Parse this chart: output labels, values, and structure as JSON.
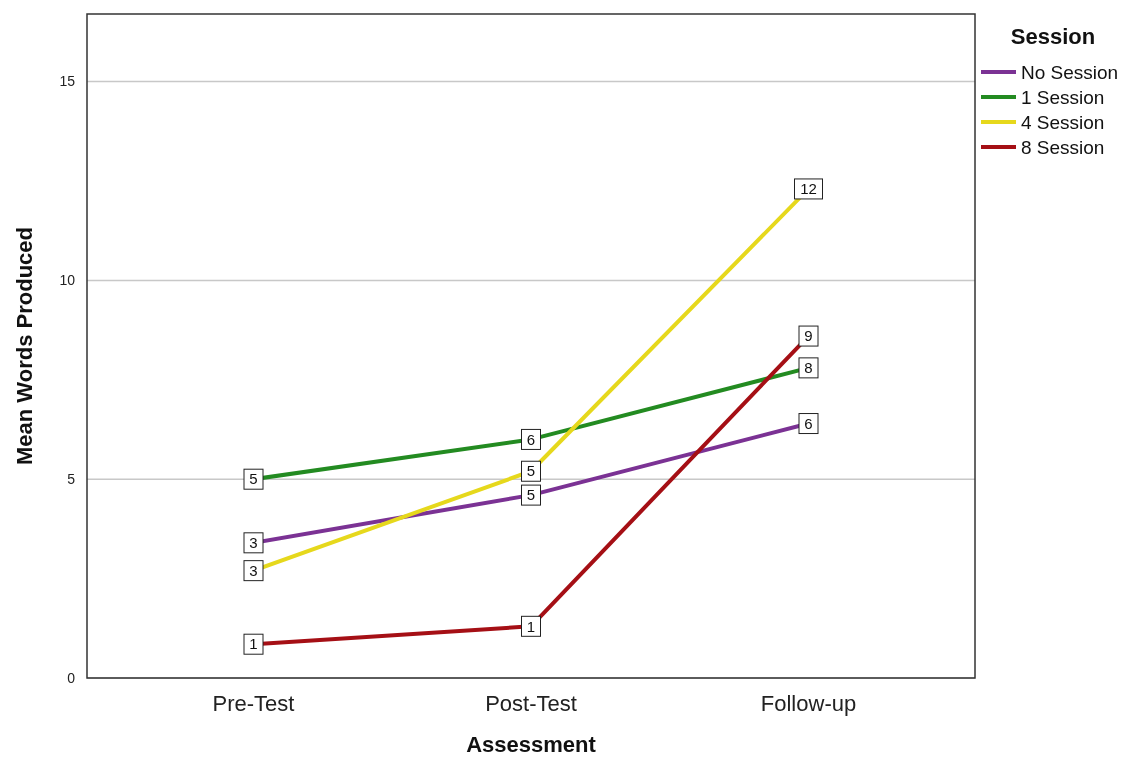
{
  "chart_data": {
    "type": "line",
    "xlabel": "Assessment",
    "ylabel": "Mean Words Produced",
    "legend_title": "Session",
    "categories": [
      "Pre-Test",
      "Post-Test",
      "Follow-up"
    ],
    "series": [
      {
        "name": "No Session",
        "color": "#7b3294",
        "values": [
          3.4,
          4.6,
          6.4
        ],
        "value_labels": [
          "3",
          "5",
          "6"
        ]
      },
      {
        "name": "1 Session",
        "color": "#238b21",
        "values": [
          5.0,
          6.0,
          7.8
        ],
        "value_labels": [
          "5",
          "6",
          "8"
        ]
      },
      {
        "name": "4 Session",
        "color": "#e6d81c",
        "values": [
          2.7,
          5.2,
          12.3
        ],
        "value_labels": [
          "3",
          "5",
          "12"
        ]
      },
      {
        "name": "8 Session",
        "color": "#a50f15",
        "values": [
          0.85,
          1.3,
          8.6
        ],
        "value_labels": [
          "1",
          "1",
          "9"
        ]
      }
    ],
    "ylim": [
      0,
      16.7
    ],
    "yticks": [
      0,
      5,
      10,
      15
    ],
    "grid": "y",
    "legend": "top right",
    "marker": "square",
    "line_style": "solid"
  }
}
